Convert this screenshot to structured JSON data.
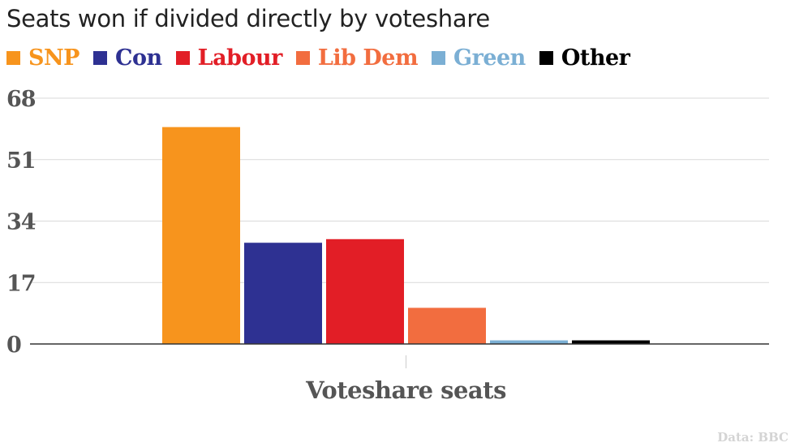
{
  "credit": "Data: BBC",
  "chart_data": {
    "type": "bar",
    "title": "Seats won if divided directly by voteshare",
    "xlabel": "Voteshare seats",
    "ylabel": "",
    "categories": [
      "Voteshare seats"
    ],
    "series": [
      {
        "name": "SNP",
        "color": "#f7941d",
        "values": [
          60
        ]
      },
      {
        "name": "Con",
        "color": "#2e3192",
        "values": [
          28
        ]
      },
      {
        "name": "Labour",
        "color": "#e21e26",
        "values": [
          29
        ]
      },
      {
        "name": "Lib Dem",
        "color": "#f26d3f",
        "values": [
          10
        ]
      },
      {
        "name": "Green",
        "color": "#7bafd4",
        "values": [
          1
        ]
      },
      {
        "name": "Other",
        "color": "#000000",
        "values": [
          1
        ]
      }
    ],
    "yticks": [
      "68",
      "51",
      "34",
      "17",
      "0"
    ],
    "ylim": [
      0,
      68
    ],
    "grid": true,
    "legend": "top-left"
  }
}
